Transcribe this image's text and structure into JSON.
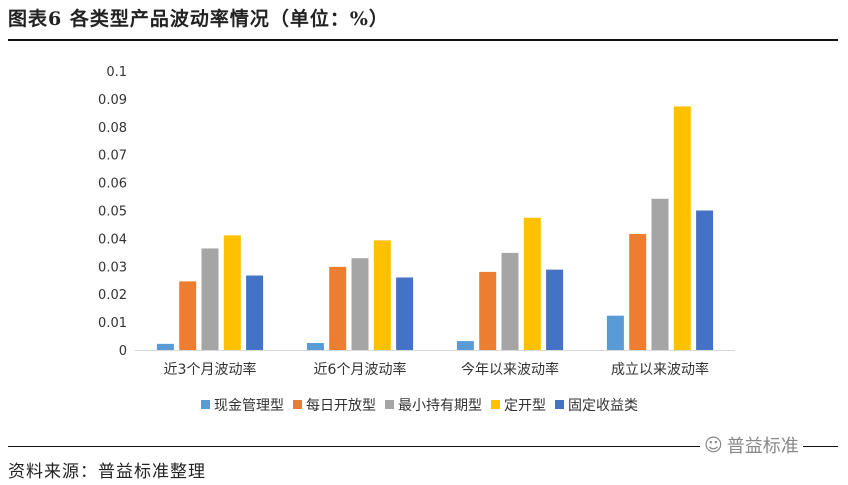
{
  "title": "图表6 各类型产品波动率情况（单位：%）",
  "source": "资料来源：普益标准整理",
  "watermark": "普益标准",
  "chart_data": {
    "type": "bar",
    "categories": [
      "近3个月波动率",
      "近6个月波动率",
      "今年以来波动率",
      "成立以来波动率"
    ],
    "series": [
      {
        "name": "现金管理型",
        "color": "#5B9BD5",
        "values": [
          0.0022,
          0.0025,
          0.0032,
          0.0123
        ]
      },
      {
        "name": "每日开放型",
        "color": "#ED7D31",
        "values": [
          0.0246,
          0.0298,
          0.028,
          0.0416
        ]
      },
      {
        "name": "最小持有期型",
        "color": "#A5A5A5",
        "values": [
          0.0364,
          0.0329,
          0.0348,
          0.0542
        ]
      },
      {
        "name": "定开型",
        "color": "#FFC000",
        "values": [
          0.0411,
          0.0393,
          0.0474,
          0.0873
        ]
      },
      {
        "name": "固定收益类",
        "color": "#4472C4",
        "values": [
          0.0267,
          0.026,
          0.0288,
          0.05
        ]
      }
    ],
    "yticks": [
      "0",
      "0.01",
      "0.02",
      "0.03",
      "0.04",
      "0.05",
      "0.06",
      "0.07",
      "0.08",
      "0.09",
      "0.1"
    ],
    "ylim": [
      0,
      0.1
    ],
    "grid": false,
    "legend": "bottom"
  }
}
